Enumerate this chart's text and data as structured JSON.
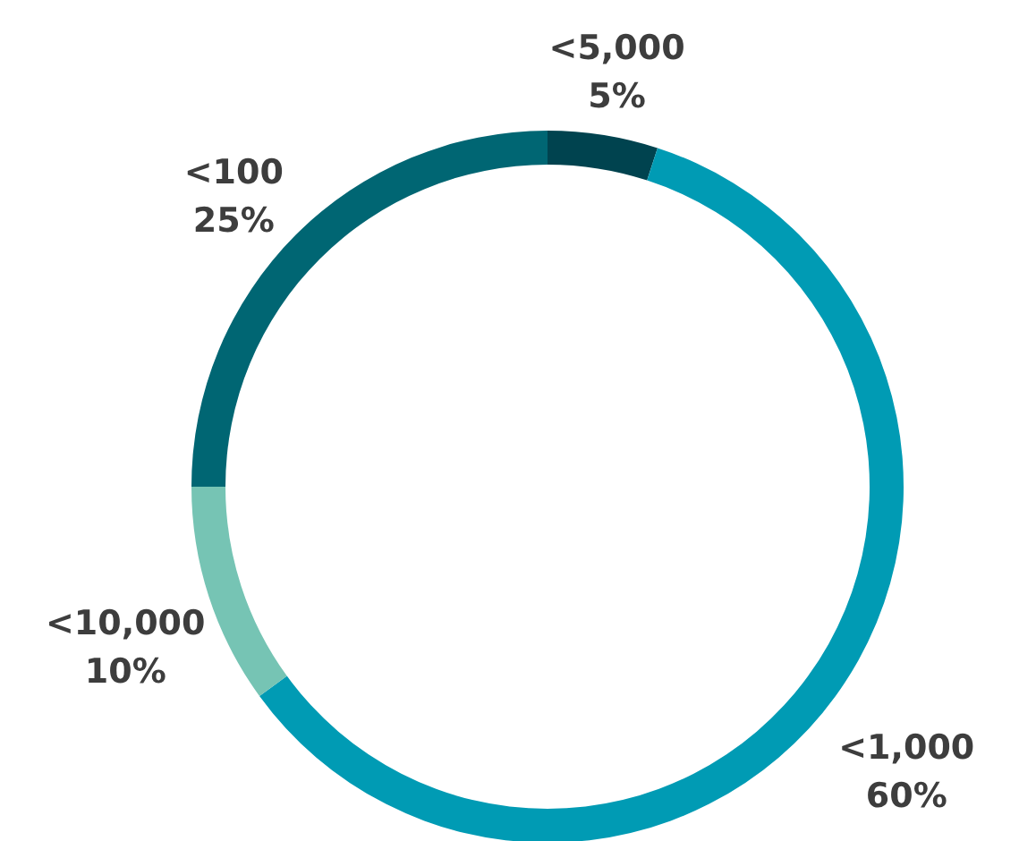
{
  "chart_data": {
    "type": "donut",
    "categories": [
      "<5,000",
      "<1,000",
      "<10,000",
      "<100"
    ],
    "values": [
      5,
      60,
      10,
      25
    ],
    "value_labels": [
      "5%",
      "60%",
      "10%",
      "25%"
    ],
    "colors": [
      "#00434f",
      "#009bb4",
      "#76c4b4",
      "#006673"
    ]
  }
}
